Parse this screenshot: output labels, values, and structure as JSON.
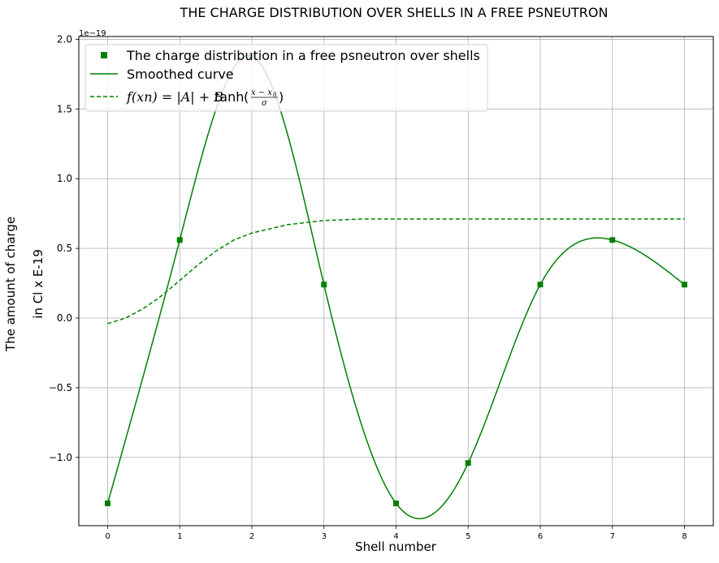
{
  "chart_data": {
    "type": "line",
    "title": "THE CHARGE DISTRIBUTION OVER SHELLS IN A FREE PSNEUTRON",
    "xlabel": "Shell number",
    "ylabel_lines": [
      "The amount of charge",
      "in Cl x E-19"
    ],
    "y_offset_label": "1e−19",
    "xlim": [
      -0.4,
      8.4
    ],
    "ylim": [
      -1.49,
      2.02
    ],
    "x_ticks": [
      0,
      1,
      2,
      3,
      4,
      5,
      6,
      7,
      8
    ],
    "y_ticks": [
      -1.0,
      -0.5,
      0.0,
      0.5,
      1.0,
      1.5,
      2.0
    ],
    "y_tick_labels": [
      "−1.0",
      "−0.5",
      "0.0",
      "0.5",
      "1.0",
      "1.5",
      "2.0"
    ],
    "grid": true,
    "legend_position": "top-left",
    "x": [
      0,
      1,
      2,
      3,
      4,
      5,
      6,
      7,
      8
    ],
    "series": [
      {
        "name": "The charge distribution in a free psneutron over shells",
        "style": "markers",
        "marker": "square",
        "color": "#008000",
        "values": [
          -1.33,
          0.56,
          1.88,
          0.24,
          -1.33,
          -1.04,
          0.24,
          0.56,
          0.24
        ]
      },
      {
        "name": "Smoothed curve",
        "style": "solid",
        "color": "#008000",
        "values": [
          -1.33,
          0.56,
          1.88,
          0.24,
          -1.33,
          -1.04,
          0.24,
          0.56,
          0.24
        ]
      },
      {
        "name": "f(xn) = |A| + Btanh((x − x0)/σ)",
        "style": "dashed",
        "color": "#008000",
        "x": [
          0,
          0.25,
          0.5,
          0.75,
          1,
          1.25,
          1.5,
          1.75,
          2,
          2.5,
          3,
          3.5,
          4,
          5,
          6,
          7,
          8
        ],
        "values": [
          -0.04,
          0.0,
          0.07,
          0.16,
          0.27,
          0.38,
          0.48,
          0.56,
          0.61,
          0.67,
          0.7,
          0.71,
          0.71,
          0.71,
          0.71,
          0.71,
          0.71
        ]
      }
    ],
    "legend": {
      "items": [
        "The charge distribution in a free psneutron over shells",
        "Smoothed curve"
      ],
      "formula": {
        "lhs": "f(xn) = |A| + B",
        "func": "tanh",
        "numerator": "x − x",
        "numerator_sub": "0",
        "denominator": "σ"
      }
    }
  }
}
